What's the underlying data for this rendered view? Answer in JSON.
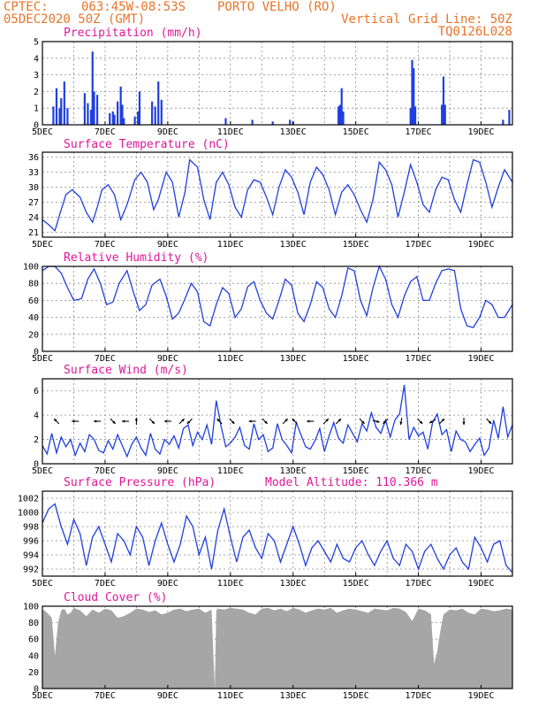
{
  "header": {
    "source": "CPTEC:",
    "location_coords": "063:45W-08:53S",
    "station": "PORTO VELHO (RO)",
    "run": "05DEC2020 50Z (GMT)",
    "grid_note": "Vertical Grid Line: 50Z",
    "model": "TQ0126L028"
  },
  "x_ticks": [
    "5DEC",
    "7DEC",
    "9DEC",
    "11DEC",
    "13DEC",
    "15DEC",
    "17DEC",
    "19DEC"
  ],
  "chart_data": [
    {
      "id": "precip",
      "type": "bar",
      "title": "Precipitation (mm/h)",
      "ylim": [
        0,
        5
      ],
      "yticks": [
        0,
        1,
        2,
        3,
        4,
        5
      ],
      "color": "#1f3fe0",
      "x_range_days": [
        5,
        20
      ],
      "x": [
        5.35,
        5.45,
        5.55,
        5.6,
        5.7,
        5.8,
        6.35,
        6.45,
        6.55,
        6.6,
        6.65,
        6.75,
        7.15,
        7.25,
        7.3,
        7.4,
        7.5,
        7.55,
        7.6,
        7.95,
        8.05,
        8.1,
        8.5,
        8.6,
        8.7,
        8.8,
        10.85,
        11.7,
        12.35,
        12.9,
        13.0,
        14.45,
        14.5,
        14.55,
        14.6,
        16.75,
        16.8,
        16.85,
        16.9,
        17.75,
        17.8,
        17.85,
        19.7,
        19.9
      ],
      "values": [
        1.1,
        2.2,
        1.0,
        1.6,
        2.6,
        1.0,
        1.9,
        1.3,
        0.9,
        4.4,
        2.0,
        1.8,
        0.7,
        0.8,
        0.6,
        1.4,
        2.3,
        1.2,
        0.4,
        0.5,
        0.8,
        2.0,
        1.4,
        1.1,
        2.6,
        1.5,
        0.4,
        0.3,
        0.2,
        0.3,
        0.2,
        1.1,
        1.2,
        2.2,
        0.8,
        1.0,
        3.9,
        3.4,
        1.1,
        1.2,
        2.9,
        1.2,
        0.3,
        0.9
      ]
    },
    {
      "id": "temperature",
      "type": "line",
      "title": "Surface Temperature (nC)",
      "ylim": [
        20,
        37
      ],
      "yticks": [
        21,
        24,
        27,
        30,
        33,
        36
      ],
      "color": "#1f3fe0",
      "x_range_days": [
        5,
        20
      ],
      "x": [
        5.0,
        5.2,
        5.4,
        5.55,
        5.75,
        5.95,
        6.2,
        6.4,
        6.6,
        6.75,
        6.9,
        7.1,
        7.3,
        7.5,
        7.7,
        7.95,
        8.15,
        8.35,
        8.55,
        8.7,
        8.95,
        9.15,
        9.35,
        9.55,
        9.7,
        9.95,
        10.15,
        10.35,
        10.55,
        10.75,
        10.95,
        11.15,
        11.35,
        11.55,
        11.75,
        11.95,
        12.15,
        12.35,
        12.55,
        12.75,
        12.95,
        13.15,
        13.35,
        13.55,
        13.75,
        13.95,
        14.15,
        14.35,
        14.55,
        14.75,
        14.95,
        15.15,
        15.35,
        15.55,
        15.75,
        15.95,
        16.15,
        16.35,
        16.55,
        16.75,
        16.95,
        17.15,
        17.35,
        17.55,
        17.75,
        17.95,
        18.15,
        18.35,
        18.55,
        18.75,
        18.95,
        19.15,
        19.35,
        19.55,
        19.75,
        20.0
      ],
      "values": [
        23.5,
        22.5,
        21.3,
        24.5,
        28.5,
        29.5,
        28.0,
        25.0,
        23.0,
        26.0,
        29.5,
        30.5,
        28.5,
        23.5,
        26.5,
        31.5,
        33.0,
        31.0,
        25.5,
        27.5,
        33.0,
        31.0,
        24.0,
        29.0,
        35.5,
        34.0,
        27.5,
        23.5,
        31.0,
        33.0,
        30.5,
        26.0,
        24.0,
        29.5,
        31.5,
        31.0,
        28.0,
        24.5,
        30.0,
        33.5,
        32.0,
        29.0,
        24.5,
        31.0,
        34.0,
        32.5,
        29.5,
        24.5,
        29.0,
        30.5,
        28.5,
        25.5,
        23.0,
        27.5,
        35.0,
        33.5,
        30.5,
        24.0,
        29.0,
        34.5,
        31.0,
        26.5,
        25.0,
        29.5,
        32.0,
        31.5,
        27.5,
        25.0,
        30.5,
        35.5,
        35.0,
        31.0,
        26.0,
        30.0,
        33.5,
        31.0
      ]
    },
    {
      "id": "humidity",
      "type": "line",
      "title": "Relative Humidity (%)",
      "ylim": [
        0,
        100
      ],
      "yticks": [
        0,
        20,
        40,
        60,
        80,
        100
      ],
      "color": "#1f3fe0",
      "x_range_days": [
        5,
        20
      ],
      "x": [
        5.0,
        5.2,
        5.4,
        5.6,
        5.8,
        6.0,
        6.25,
        6.45,
        6.65,
        6.85,
        7.05,
        7.25,
        7.45,
        7.7,
        7.9,
        8.1,
        8.3,
        8.5,
        8.75,
        8.95,
        9.15,
        9.35,
        9.55,
        9.75,
        9.95,
        10.15,
        10.35,
        10.55,
        10.75,
        10.95,
        11.15,
        11.35,
        11.55,
        11.75,
        11.95,
        12.15,
        12.35,
        12.55,
        12.75,
        12.95,
        13.15,
        13.35,
        13.55,
        13.75,
        13.95,
        14.15,
        14.35,
        14.55,
        14.75,
        14.95,
        15.15,
        15.35,
        15.55,
        15.75,
        15.95,
        16.15,
        16.35,
        16.55,
        16.75,
        16.95,
        17.15,
        17.35,
        17.55,
        17.75,
        17.95,
        18.15,
        18.35,
        18.55,
        18.75,
        18.95,
        19.15,
        19.35,
        19.55,
        19.75,
        20.0
      ],
      "values": [
        95,
        100,
        100,
        92,
        75,
        60,
        62,
        85,
        97,
        80,
        55,
        58,
        80,
        95,
        70,
        48,
        55,
        78,
        85,
        65,
        38,
        45,
        62,
        80,
        70,
        35,
        30,
        55,
        75,
        68,
        40,
        50,
        76,
        82,
        60,
        45,
        38,
        60,
        85,
        78,
        45,
        35,
        55,
        82,
        75,
        50,
        40,
        65,
        98,
        95,
        60,
        42,
        75,
        100,
        85,
        55,
        40,
        65,
        82,
        88,
        60,
        60,
        80,
        95,
        97,
        95,
        50,
        30,
        28,
        40,
        60,
        55,
        40,
        40,
        55
      ]
    },
    {
      "id": "wind",
      "type": "line",
      "title": "Surface Wind (m/s)",
      "ylim": [
        0,
        7
      ],
      "yticks": [
        0,
        2,
        4,
        6
      ],
      "color": "#1f3fe0",
      "x_range_days": [
        5,
        20
      ],
      "x": [
        5.0,
        5.15,
        5.3,
        5.45,
        5.6,
        5.75,
        5.9,
        6.05,
        6.2,
        6.35,
        6.5,
        6.65,
        6.8,
        6.95,
        7.1,
        7.25,
        7.4,
        7.55,
        7.7,
        7.85,
        8.0,
        8.15,
        8.3,
        8.45,
        8.6,
        8.75,
        8.9,
        9.05,
        9.2,
        9.35,
        9.5,
        9.65,
        9.8,
        9.95,
        10.1,
        10.25,
        10.4,
        10.55,
        10.7,
        10.85,
        11.0,
        11.15,
        11.3,
        11.45,
        11.6,
        11.75,
        11.9,
        12.05,
        12.2,
        12.35,
        12.5,
        12.65,
        12.8,
        12.95,
        13.1,
        13.25,
        13.4,
        13.55,
        13.7,
        13.85,
        14.0,
        14.15,
        14.3,
        14.45,
        14.6,
        14.75,
        14.9,
        15.05,
        15.2,
        15.35,
        15.5,
        15.65,
        15.8,
        15.95,
        16.1,
        16.25,
        16.4,
        16.55,
        16.7,
        16.85,
        17.0,
        17.15,
        17.3,
        17.45,
        17.6,
        17.75,
        17.9,
        18.05,
        18.2,
        18.35,
        18.5,
        18.65,
        18.8,
        18.95,
        19.1,
        19.25,
        19.4,
        19.55,
        19.7,
        19.85,
        20.0
      ],
      "values": [
        1.5,
        0.8,
        2.5,
        0.9,
        2.2,
        1.4,
        2.0,
        0.7,
        1.7,
        1.0,
        2.4,
        2.0,
        1.1,
        0.9,
        1.9,
        1.2,
        2.4,
        1.5,
        0.6,
        1.6,
        2.2,
        1.3,
        0.7,
        2.5,
        1.2,
        0.8,
        2.0,
        1.6,
        2.3,
        1.3,
        2.9,
        3.2,
        1.5,
        2.6,
        2.0,
        3.2,
        1.6,
        5.2,
        3.1,
        1.4,
        1.7,
        2.2,
        3.0,
        1.5,
        1.2,
        3.3,
        2.0,
        2.4,
        1.0,
        1.3,
        3.3,
        2.0,
        1.5,
        0.9,
        3.4,
        2.4,
        1.4,
        1.2,
        1.9,
        2.9,
        1.0,
        2.3,
        3.4,
        2.1,
        1.7,
        3.2,
        2.5,
        1.8,
        3.3,
        2.7,
        4.2,
        3.0,
        2.5,
        3.6,
        2.2,
        3.6,
        4.1,
        6.5,
        2.0,
        3.0,
        2.3,
        2.6,
        1.2,
        3.4,
        4.1,
        2.4,
        2.8,
        1.0,
        2.7,
        2.0,
        1.8,
        1.0,
        1.6,
        2.1,
        0.7,
        1.3,
        3.6,
        2.1,
        4.7,
        2.2,
        3.2
      ]
    },
    {
      "id": "pressure",
      "type": "line",
      "title": "Surface Pressure (hPa)",
      "annotation": "Model Altitude: 110.366 m",
      "ylim": [
        991,
        1003
      ],
      "yticks": [
        992,
        994,
        996,
        998,
        1000,
        1002
      ],
      "color": "#1f3fe0",
      "x_range_days": [
        5,
        20
      ],
      "x": [
        5.0,
        5.2,
        5.4,
        5.6,
        5.8,
        6.0,
        6.2,
        6.4,
        6.6,
        6.8,
        7.0,
        7.2,
        7.4,
        7.6,
        7.8,
        8.0,
        8.2,
        8.4,
        8.6,
        8.8,
        9.0,
        9.2,
        9.4,
        9.6,
        9.8,
        10.0,
        10.2,
        10.4,
        10.6,
        10.8,
        11.0,
        11.2,
        11.4,
        11.6,
        11.8,
        12.0,
        12.2,
        12.4,
        12.6,
        12.8,
        13.0,
        13.2,
        13.4,
        13.6,
        13.8,
        14.0,
        14.2,
        14.4,
        14.6,
        14.8,
        15.0,
        15.2,
        15.4,
        15.6,
        15.8,
        16.0,
        16.2,
        16.4,
        16.6,
        16.8,
        17.0,
        17.2,
        17.4,
        17.6,
        17.8,
        18.0,
        18.2,
        18.4,
        18.6,
        18.8,
        19.0,
        19.2,
        19.4,
        19.6,
        19.8,
        20.0
      ],
      "values": [
        998.5,
        1000.5,
        1001.2,
        998.0,
        995.5,
        999.0,
        997.0,
        992.5,
        996.5,
        998.0,
        995.5,
        993.0,
        997.0,
        996.0,
        994.0,
        998.0,
        996.5,
        992.5,
        996.0,
        998.5,
        995.5,
        993.0,
        995.5,
        999.5,
        998.0,
        994.0,
        996.5,
        992.0,
        997.5,
        1000.5,
        996.5,
        993.0,
        996.5,
        997.5,
        995.0,
        993.5,
        997.0,
        996.0,
        993.0,
        995.5,
        998.0,
        995.5,
        992.5,
        995.0,
        996.0,
        994.5,
        993.0,
        995.5,
        993.5,
        993.0,
        995.0,
        996.0,
        994.0,
        992.5,
        994.5,
        996.0,
        993.5,
        992.5,
        995.5,
        994.5,
        992.0,
        994.5,
        995.5,
        993.5,
        992.0,
        994.0,
        995.0,
        993.0,
        992.0,
        996.5,
        995.0,
        993.0,
        995.5,
        996.0,
        992.5,
        991.5
      ]
    },
    {
      "id": "cloud",
      "type": "area",
      "title": "Cloud Cover (%)",
      "ylim": [
        0,
        100
      ],
      "yticks": [
        0,
        20,
        40,
        60,
        80,
        100
      ],
      "color": "#a6a6a6",
      "x_range_days": [
        5,
        20
      ],
      "x": [
        5.0,
        5.1,
        5.2,
        5.3,
        5.4,
        5.5,
        5.6,
        5.7,
        5.8,
        5.9,
        6.0,
        6.2,
        6.4,
        6.6,
        6.8,
        7.0,
        7.2,
        7.4,
        7.6,
        7.8,
        8.0,
        8.2,
        8.4,
        8.6,
        8.8,
        9.0,
        9.2,
        9.4,
        9.6,
        9.8,
        10.0,
        10.2,
        10.4,
        10.5,
        10.55,
        10.6,
        10.8,
        11.0,
        11.2,
        11.4,
        11.6,
        11.8,
        12.0,
        12.2,
        12.4,
        12.6,
        12.8,
        13.0,
        13.2,
        13.4,
        13.6,
        13.8,
        14.0,
        14.2,
        14.4,
        14.6,
        14.8,
        15.0,
        15.2,
        15.4,
        15.6,
        15.8,
        16.0,
        16.2,
        16.4,
        16.6,
        16.8,
        17.0,
        17.2,
        17.4,
        17.5,
        17.6,
        17.7,
        17.8,
        18.0,
        18.2,
        18.4,
        18.6,
        18.8,
        19.0,
        19.2,
        19.4,
        19.6,
        19.8,
        20.0
      ],
      "values": [
        96,
        94,
        90,
        86,
        40,
        80,
        95,
        97,
        90,
        92,
        98,
        95,
        88,
        96,
        92,
        97,
        95,
        86,
        88,
        92,
        97,
        96,
        93,
        95,
        90,
        92,
        96,
        97,
        94,
        96,
        97,
        92,
        96,
        0,
        95,
        97,
        96,
        98,
        97,
        96,
        92,
        90,
        97,
        98,
        95,
        97,
        94,
        98,
        96,
        92,
        95,
        97,
        96,
        98,
        92,
        95,
        97,
        96,
        94,
        92,
        97,
        96,
        95,
        98,
        97,
        93,
        82,
        97,
        95,
        90,
        30,
        45,
        70,
        90,
        96,
        95,
        97,
        92,
        90,
        97,
        96,
        94,
        95,
        97,
        96
      ]
    }
  ],
  "wind_arrows": [
    {
      "x": 5.45,
      "dir": 315
    },
    {
      "x": 6.05,
      "dir": 270
    },
    {
      "x": 6.75,
      "dir": 270
    },
    {
      "x": 7.25,
      "dir": 135
    },
    {
      "x": 7.65,
      "dir": 270
    },
    {
      "x": 8.0,
      "dir": 0
    },
    {
      "x": 8.5,
      "dir": 135
    },
    {
      "x": 9.0,
      "dir": 270
    },
    {
      "x": 9.45,
      "dir": 45
    },
    {
      "x": 9.7,
      "dir": 225
    },
    {
      "x": 10.65,
      "dir": 315
    },
    {
      "x": 11.05,
      "dir": 135
    },
    {
      "x": 11.7,
      "dir": 270
    },
    {
      "x": 12.1,
      "dir": 135
    },
    {
      "x": 12.75,
      "dir": 45
    },
    {
      "x": 13.05,
      "dir": 315
    },
    {
      "x": 13.55,
      "dir": 270
    },
    {
      "x": 14.05,
      "dir": 45
    },
    {
      "x": 14.45,
      "dir": 45
    },
    {
      "x": 15.2,
      "dir": 135
    },
    {
      "x": 15.65,
      "dir": 105
    },
    {
      "x": 15.95,
      "dir": 225
    },
    {
      "x": 16.45,
      "dir": 190
    },
    {
      "x": 17.05,
      "dir": 135
    },
    {
      "x": 17.45,
      "dir": 240
    },
    {
      "x": 17.75,
      "dir": 45
    },
    {
      "x": 18.45,
      "dir": 180
    },
    {
      "x": 19.25,
      "dir": 135
    }
  ]
}
